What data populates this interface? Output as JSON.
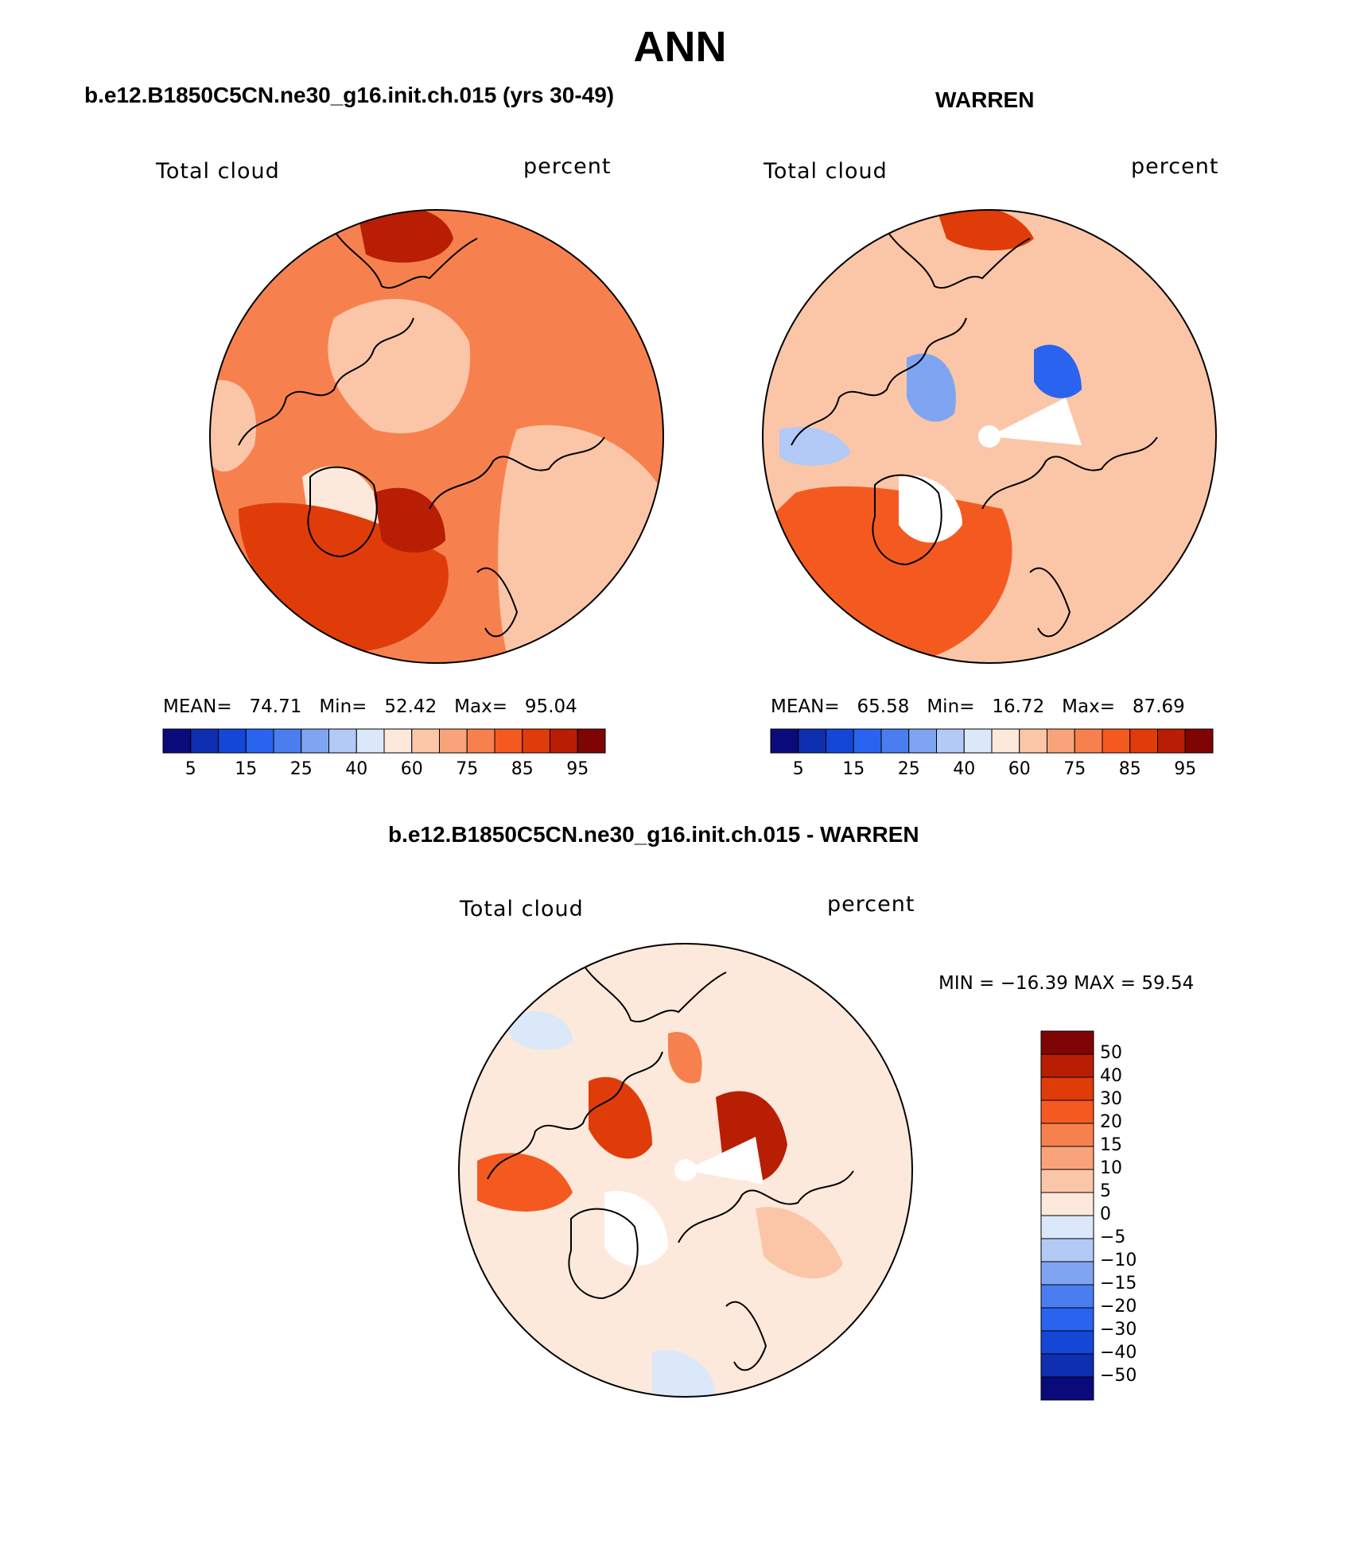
{
  "figure": {
    "title": "ANN",
    "panel_left_title": "b.e12.B1850C5CN.ne30_g16.init.ch.015 (yrs 30-49)",
    "panel_right_title": "WARREN",
    "panel_bottom_title": "b.e12.B1850C5CN.ne30_g16.init.ch.015 - WARREN"
  },
  "colors": {
    "scale": [
      "#0a0a7a",
      "#0d2fb0",
      "#1446d8",
      "#2a64ee",
      "#4a7ef0",
      "#7fa5f2",
      "#b3c9f6",
      "#dbe8fa",
      "#fde9db",
      "#fbc6a8",
      "#f9a37a",
      "#f7814e",
      "#f45a20",
      "#e03c0a",
      "#b81e04",
      "#7f0505"
    ],
    "diff_scale": [
      "#0a0a7a",
      "#0d2fb0",
      "#1446d8",
      "#2a64ee",
      "#4a7ef0",
      "#7fa5f2",
      "#b3c9f6",
      "#dbe8fa",
      "#fde9db",
      "#fbc6a8",
      "#f9a37a",
      "#f7814e",
      "#f45a20",
      "#e03c0a",
      "#b81e04",
      "#7f0505"
    ]
  },
  "chart_data": [
    {
      "type": "heatmap",
      "name": "model",
      "title": "b.e12.B1850C5CN.ne30_g16.init.ch.015 (yrs 30-49)",
      "variable": "Total cloud",
      "units": "percent",
      "stats": {
        "mean_label": "MEAN=",
        "mean": "74.71",
        "min_label": "Min=",
        "min": "52.42",
        "max_label": "Max=",
        "max": "95.04"
      },
      "colorbar_levels": [
        5,
        10,
        15,
        20,
        25,
        30,
        40,
        50,
        60,
        70,
        75,
        80,
        85,
        90,
        95
      ],
      "colorbar_tick_labels": [
        "5",
        "15",
        "25",
        "40",
        "60",
        "75",
        "85",
        "95"
      ],
      "projection": "north polar stereographic"
    },
    {
      "type": "heatmap",
      "name": "obs",
      "title": "WARREN",
      "variable": "Total cloud",
      "units": "percent",
      "stats": {
        "mean_label": "MEAN=",
        "mean": "65.58",
        "min_label": "Min=",
        "min": "16.72",
        "max_label": "Max=",
        "max": "87.69"
      },
      "colorbar_levels": [
        5,
        10,
        15,
        20,
        25,
        30,
        40,
        50,
        60,
        70,
        75,
        80,
        85,
        90,
        95
      ],
      "colorbar_tick_labels": [
        "5",
        "15",
        "25",
        "40",
        "60",
        "75",
        "85",
        "95"
      ],
      "projection": "north polar stereographic"
    },
    {
      "type": "heatmap",
      "name": "difference",
      "title": "b.e12.B1850C5CN.ne30_g16.init.ch.015 - WARREN",
      "variable": "Total cloud",
      "units": "percent",
      "stats_text": "MIN = −16.39 MAX =  59.54",
      "colorbar_levels": [
        50,
        40,
        30,
        20,
        15,
        10,
        5,
        0,
        -5,
        -10,
        -15,
        -20,
        -30,
        -40,
        -50
      ],
      "colorbar_tick_labels": [
        "50",
        "40",
        "30",
        "20",
        "15",
        "10",
        "5",
        "0",
        "−5",
        "−10",
        "−15",
        "−20",
        "−30",
        "−40",
        "−50"
      ],
      "projection": "north polar stereographic"
    }
  ]
}
